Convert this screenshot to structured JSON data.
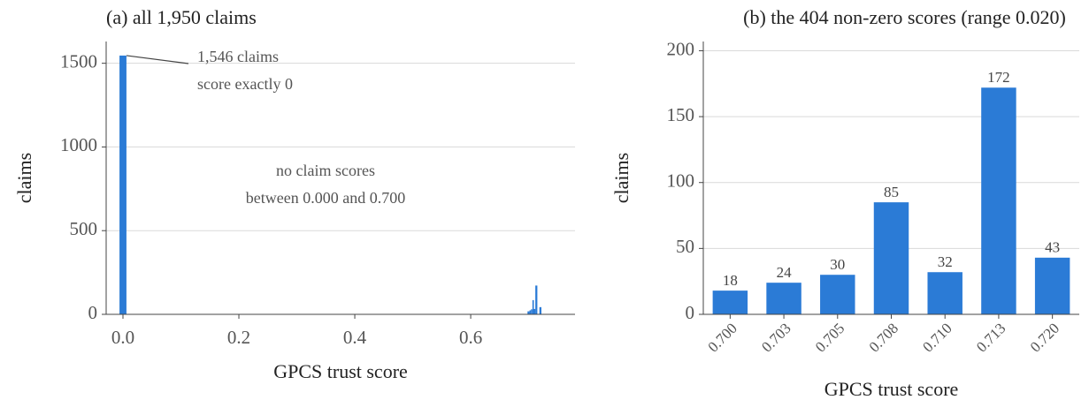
{
  "chart_data": [
    {
      "type": "histogram",
      "title": "(a) all 1,950 claims",
      "xlabel": "GPCS trust score",
      "ylabel": "claims",
      "bins": [
        -0.006,
        0.006,
        0.698,
        0.7015,
        0.704,
        0.7065,
        0.709,
        0.7115,
        0.715,
        0.7185,
        0.722
      ],
      "counts": [
        1546,
        0,
        18,
        24,
        30,
        85,
        32,
        172,
        0,
        43
      ],
      "color": "#2b7bd6",
      "xlim": [
        -0.029,
        0.78
      ],
      "ylim": [
        0,
        1630
      ],
      "xticks": [
        {
          "value": 0,
          "label": "0.0"
        },
        {
          "value": 0.2,
          "label": "0.2"
        },
        {
          "value": 0.4,
          "label": "0.4"
        },
        {
          "value": 0.6,
          "label": "0.6"
        }
      ],
      "yticks": [
        0,
        500,
        1000,
        1500
      ],
      "grid": true,
      "annotations": [
        "1,546 claims",
        "score exactly 0",
        "no claim scores",
        "between 0.000 and 0.700"
      ]
    },
    {
      "type": "bar",
      "title": "(b) the 404 non-zero scores (range 0.020)",
      "xlabel": "GPCS trust score",
      "ylabel": "claims",
      "categories": [
        "0.700",
        "0.703",
        "0.705",
        "0.708",
        "0.710",
        "0.713",
        "0.720"
      ],
      "values": [
        18,
        24,
        30,
        85,
        32,
        172,
        43
      ],
      "color": "#2b7bd6",
      "ylim": [
        0,
        207
      ],
      "yticks": [
        0,
        50,
        100,
        150,
        200
      ],
      "grid": true
    }
  ]
}
